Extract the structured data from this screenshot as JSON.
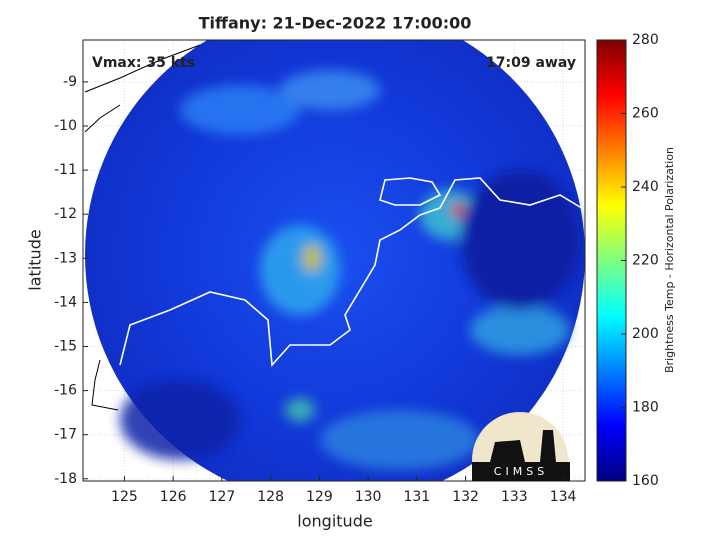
{
  "chart_data": {
    "type": "map",
    "title": "Tiffany: 21-Dec-2022 17:00:00",
    "annotations": [
      "Vmax: 35 kts",
      "17:09 away"
    ],
    "xlabel": "longitude",
    "ylabel": "latitude",
    "xlim": [
      124.15,
      134.45
    ],
    "xticks": [
      125,
      126,
      127,
      128,
      129,
      130,
      131,
      132,
      133,
      134
    ],
    "ylim": [
      -18.05,
      -8.05
    ],
    "yticks": [
      -18,
      -17,
      -16,
      -15,
      -14,
      -13,
      -12,
      -11,
      -10,
      -9
    ],
    "grid": true,
    "colorbar": {
      "label": "Brightness Temp - Horizontal Polarization",
      "colormap": "jet",
      "clim": [
        160,
        280
      ],
      "ticks": [
        160,
        180,
        200,
        220,
        240,
        260,
        280
      ]
    },
    "logo": "CIMSS"
  }
}
